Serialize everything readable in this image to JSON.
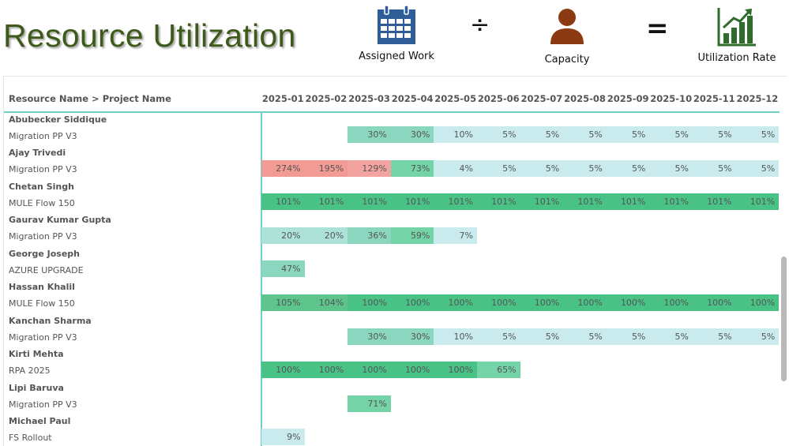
{
  "title": "Resource Utilization",
  "formula": {
    "assigned_label": "Assigned Work",
    "capacity_label": "Capacity",
    "result_label": "Utilization Rate",
    "divide_symbol": "÷",
    "equals_symbol": "="
  },
  "colors": {
    "title": "#3e5a1a",
    "calendar_icon": "#2e5d98",
    "person_icon": "#8b3a12",
    "chart_icon": "#2f6b2a",
    "divider": "#6fcfc7",
    "over": "#f4a4a0",
    "over_strong": "#f29a94",
    "very_high": "#5dc58c",
    "high": "#49c286",
    "mid": "#8ad6be",
    "low": "#ade2d8",
    "very_low": "#c9ebee",
    "scrollbar": "#b9b9b9"
  },
  "table": {
    "header": "Resource Name > Project Name",
    "months": [
      "2025-01",
      "2025-02",
      "2025-03",
      "2025-04",
      "2025-05",
      "2025-06",
      "2025-07",
      "2025-08",
      "2025-09",
      "2025-10",
      "2025-11",
      "2025-12"
    ],
    "groups": [
      {
        "person": "Abubecker Siddique",
        "project": "Migration PP V3",
        "values": [
          null,
          null,
          "30%",
          "30%",
          "10%",
          "5%",
          "5%",
          "5%",
          "5%",
          "5%",
          "5%",
          "5%"
        ]
      },
      {
        "person": "Ajay Trivedi",
        "project": "Migration PP V3",
        "values": [
          "274%",
          "195%",
          "129%",
          "73%",
          "4%",
          "5%",
          "5%",
          "5%",
          "5%",
          "5%",
          "5%",
          "5%"
        ]
      },
      {
        "person": "Chetan Singh",
        "project": "MULE Flow 150",
        "values": [
          "101%",
          "101%",
          "101%",
          "101%",
          "101%",
          "101%",
          "101%",
          "101%",
          "101%",
          "101%",
          "101%",
          "101%"
        ]
      },
      {
        "person": "Gaurav Kumar Gupta",
        "project": "Migration PP V3",
        "values": [
          "20%",
          "20%",
          "36%",
          "59%",
          "7%",
          null,
          null,
          null,
          null,
          null,
          null,
          null
        ]
      },
      {
        "person": "George Joseph",
        "project": "AZURE UPGRADE",
        "values": [
          "47%",
          null,
          null,
          null,
          null,
          null,
          null,
          null,
          null,
          null,
          null,
          null
        ]
      },
      {
        "person": "Hassan Khalil",
        "project": "MULE Flow 150",
        "values": [
          "105%",
          "104%",
          "100%",
          "100%",
          "100%",
          "100%",
          "100%",
          "100%",
          "100%",
          "100%",
          "100%",
          "100%"
        ]
      },
      {
        "person": "Kanchan Sharma",
        "project": "Migration PP V3",
        "values": [
          null,
          null,
          "30%",
          "30%",
          "10%",
          "5%",
          "5%",
          "5%",
          "5%",
          "5%",
          "5%",
          "5%"
        ]
      },
      {
        "person": "Kirti Mehta",
        "project": "RPA 2025",
        "values": [
          "100%",
          "100%",
          "100%",
          "100%",
          "100%",
          "65%",
          null,
          null,
          null,
          null,
          null,
          null
        ]
      },
      {
        "person": "Lipi Baruva",
        "project": "Migration PP V3",
        "values": [
          null,
          null,
          "71%",
          null,
          null,
          null,
          null,
          null,
          null,
          null,
          null,
          null
        ]
      },
      {
        "person": "Michael Paul",
        "project": "FS Rollout",
        "values": [
          "9%",
          null,
          null,
          null,
          null,
          null,
          null,
          null,
          null,
          null,
          null,
          null
        ]
      }
    ]
  }
}
